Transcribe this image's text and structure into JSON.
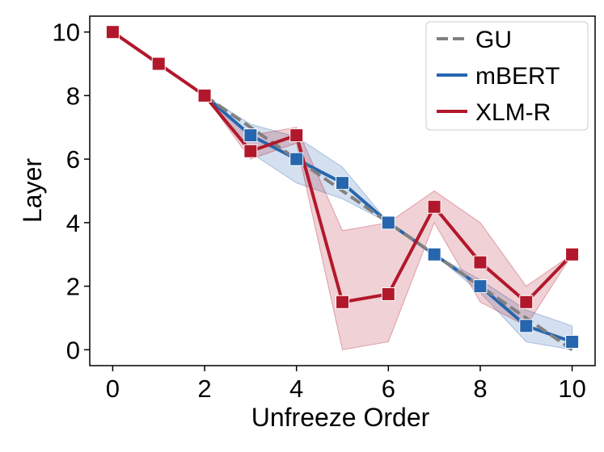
{
  "chart_data": {
    "type": "line",
    "title": "",
    "xlabel": "Unfreeze Order",
    "ylabel": "Layer",
    "xlim": [
      -0.5,
      10.5
    ],
    "ylim": [
      -0.5,
      10.5
    ],
    "xticks": [
      0,
      2,
      4,
      6,
      8,
      10
    ],
    "yticks": [
      0,
      2,
      4,
      6,
      8,
      10
    ],
    "grid": false,
    "legend_position": "top-right",
    "series": [
      {
        "name": "GU",
        "color": "#808080",
        "style": "dashed",
        "marker": "none",
        "x": [
          2,
          3,
          4,
          5,
          6,
          7,
          8,
          9,
          10
        ],
        "y": [
          8,
          7,
          6,
          5,
          4,
          3,
          2,
          1,
          0
        ]
      },
      {
        "name": "mBERT",
        "color": "#2766ae",
        "style": "solid",
        "marker": "square",
        "x": [
          2,
          3,
          4,
          5,
          6,
          7,
          8,
          9,
          10
        ],
        "y": [
          8,
          6.75,
          6,
          5.25,
          4,
          3,
          2,
          0.75,
          0.25
        ],
        "band_lower": [
          8,
          6.2,
          5.25,
          4.75,
          4,
          3,
          1.8,
          0.25,
          0.0
        ],
        "band_upper": [
          8,
          7.1,
          6.7,
          5.75,
          4,
          3,
          2.2,
          1.25,
          0.75
        ]
      },
      {
        "name": "XLM-R",
        "color": "#b2182b",
        "style": "solid",
        "marker": "square",
        "x": [
          0,
          1,
          2,
          3,
          4,
          5,
          6,
          7,
          8,
          9,
          10
        ],
        "y": [
          10,
          9,
          8,
          6.25,
          6.75,
          1.5,
          1.75,
          4.5,
          2.75,
          1.5,
          3
        ],
        "band_lower": [
          10,
          9,
          8,
          6.0,
          6.5,
          0.0,
          0.25,
          4.0,
          1.5,
          0.75,
          3
        ],
        "band_upper": [
          10,
          9,
          8,
          6.75,
          7.0,
          3.75,
          4.0,
          5.0,
          4.0,
          2.0,
          3
        ]
      }
    ]
  }
}
